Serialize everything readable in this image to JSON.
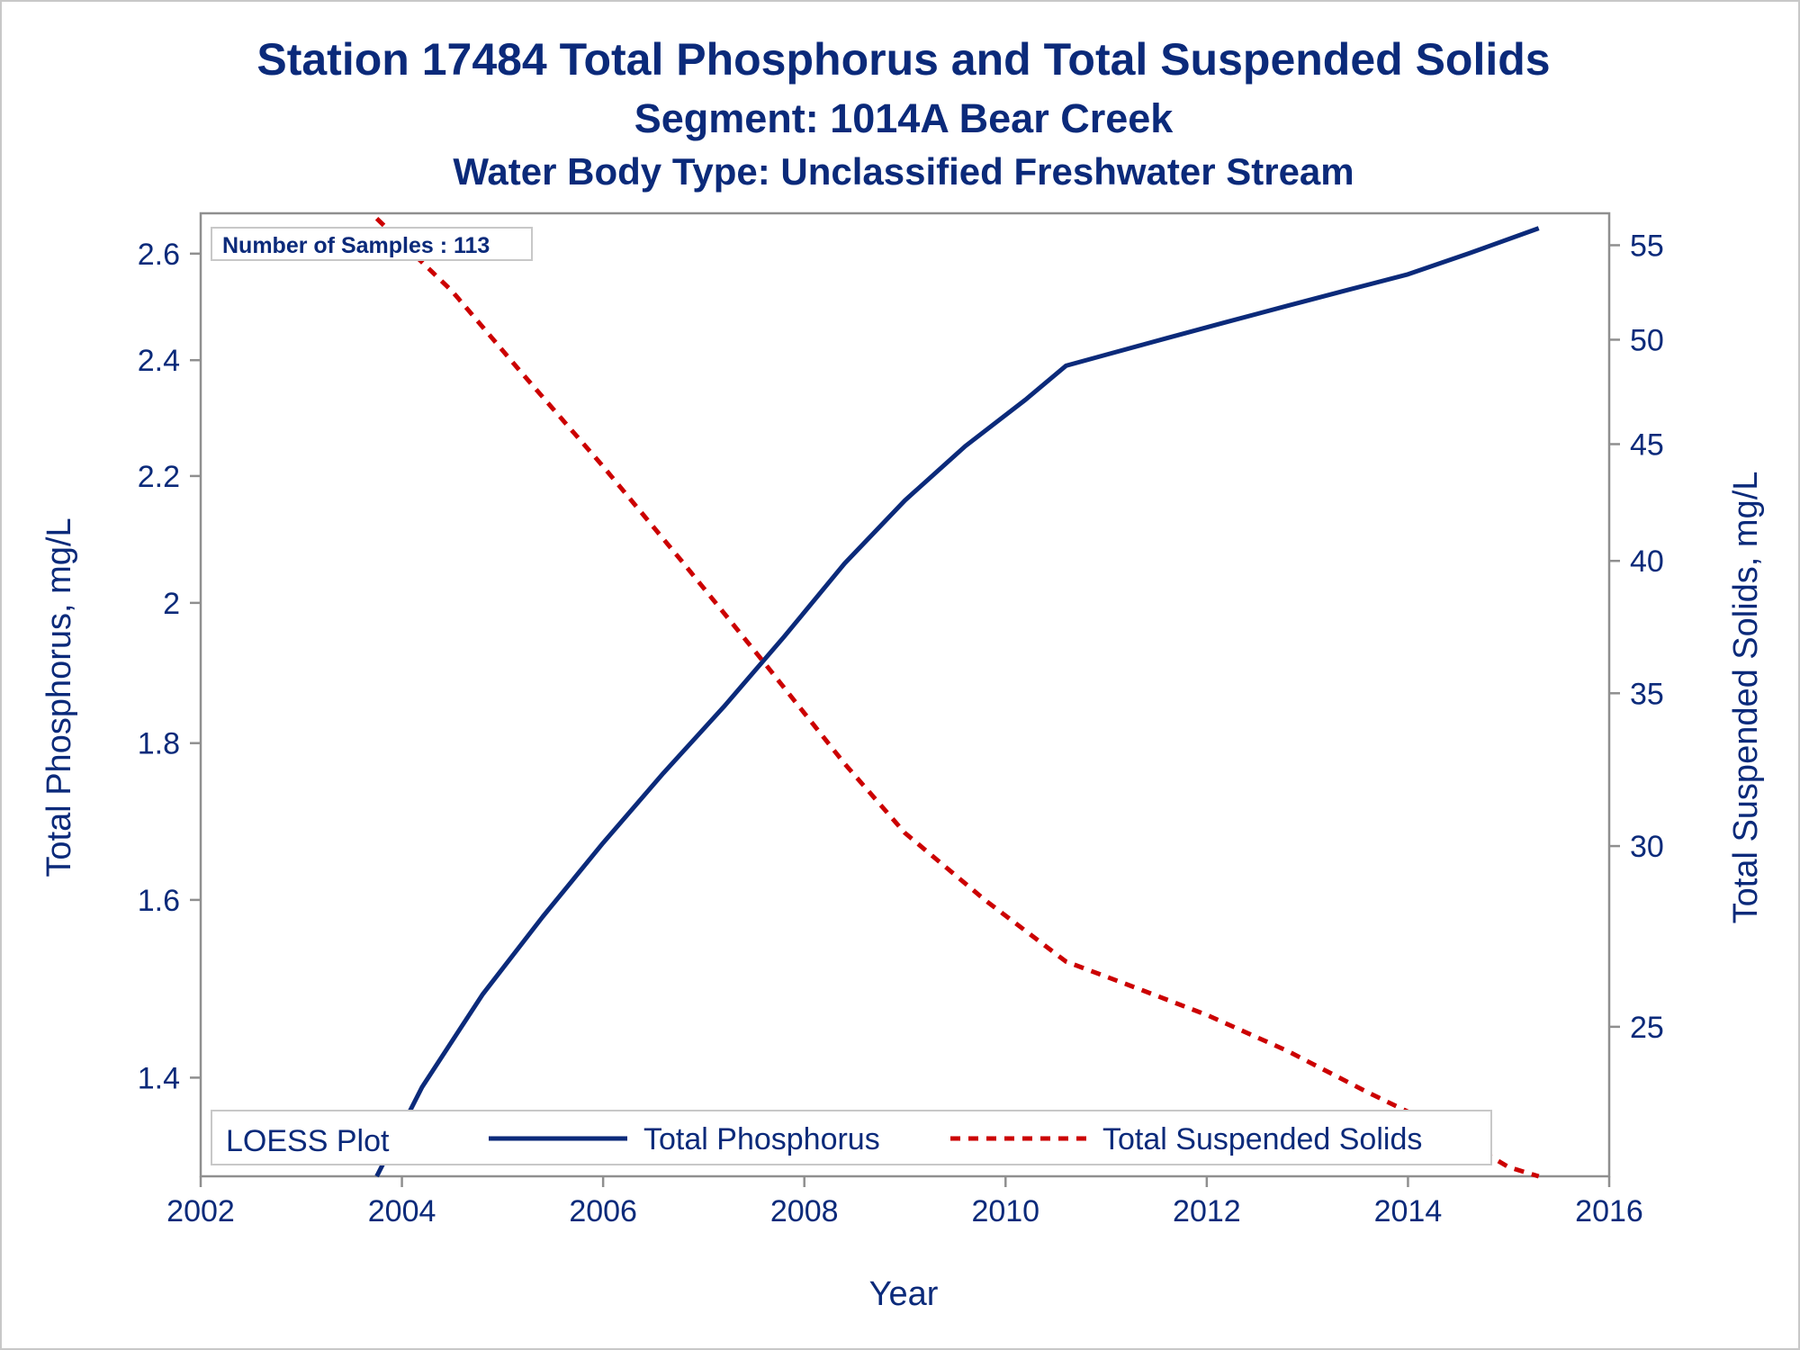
{
  "chart_data": {
    "type": "line",
    "title": "Station 17484  Total Phosphorus and Total Suspended Solids",
    "subtitle": "Segment: 1014A  Bear Creek",
    "subtitle2": "Water Body Type: Unclassified Freshwater Stream",
    "inset_label": "Number of Samples : 113",
    "xlabel": "Year",
    "ylabel_left": "Total Phosphorus, mg/L",
    "ylabel_right": "Total Suspended Solids, mg/L",
    "xlim": [
      2002,
      2016
    ],
    "xticks": [
      "2002",
      "2004",
      "2006",
      "2008",
      "2010",
      "2012",
      "2014",
      "2016"
    ],
    "y_left_scale": "log",
    "y_left_lim": [
      1.3,
      2.68
    ],
    "y_left_ticks": [
      "1.4",
      "1.6",
      "1.8",
      "2",
      "2.2",
      "2.4",
      "2.6"
    ],
    "y_right_scale": "log",
    "y_right_lim": [
      21.5,
      56.8
    ],
    "y_right_ticks": [
      "25",
      "30",
      "35",
      "40",
      "45",
      "50",
      "55"
    ],
    "grid": false,
    "legend": {
      "title": "LOESS Plot",
      "placement": "bottom",
      "entries": [
        "Total Phosphorus",
        "Total Suspended Solids"
      ]
    },
    "series": [
      {
        "name": "Total Phosphorus",
        "axis": "left",
        "color": "#0b2a7a",
        "style": "solid",
        "x": [
          2003.75,
          2004.2,
          2004.8,
          2005.4,
          2006.0,
          2006.6,
          2007.2,
          2007.8,
          2008.4,
          2009.0,
          2009.6,
          2010.2,
          2010.6,
          2011.0,
          2011.6,
          2012.2,
          2012.8,
          2013.4,
          2014.0,
          2014.6,
          2015.3
        ],
        "values": [
          1.3,
          1.39,
          1.49,
          1.58,
          1.67,
          1.76,
          1.85,
          1.95,
          2.06,
          2.16,
          2.25,
          2.33,
          2.39,
          2.41,
          2.44,
          2.47,
          2.5,
          2.53,
          2.56,
          2.6,
          2.65
        ]
      },
      {
        "name": "Total Suspended Solids",
        "axis": "right",
        "color": "#cc0000",
        "style": "dashed",
        "x": [
          2003.75,
          2004.5,
          2005.2,
          2006.0,
          2006.8,
          2007.6,
          2008.4,
          2009.0,
          2009.8,
          2010.6,
          2011.2,
          2012.0,
          2012.8,
          2013.6,
          2014.4,
          2015.0,
          2015.3
        ],
        "values": [
          56.5,
          52.5,
          48.3,
          44.0,
          39.9,
          36.1,
          32.6,
          30.4,
          28.4,
          26.7,
          26.1,
          25.3,
          24.4,
          23.4,
          22.5,
          21.7,
          21.4
        ]
      }
    ]
  }
}
